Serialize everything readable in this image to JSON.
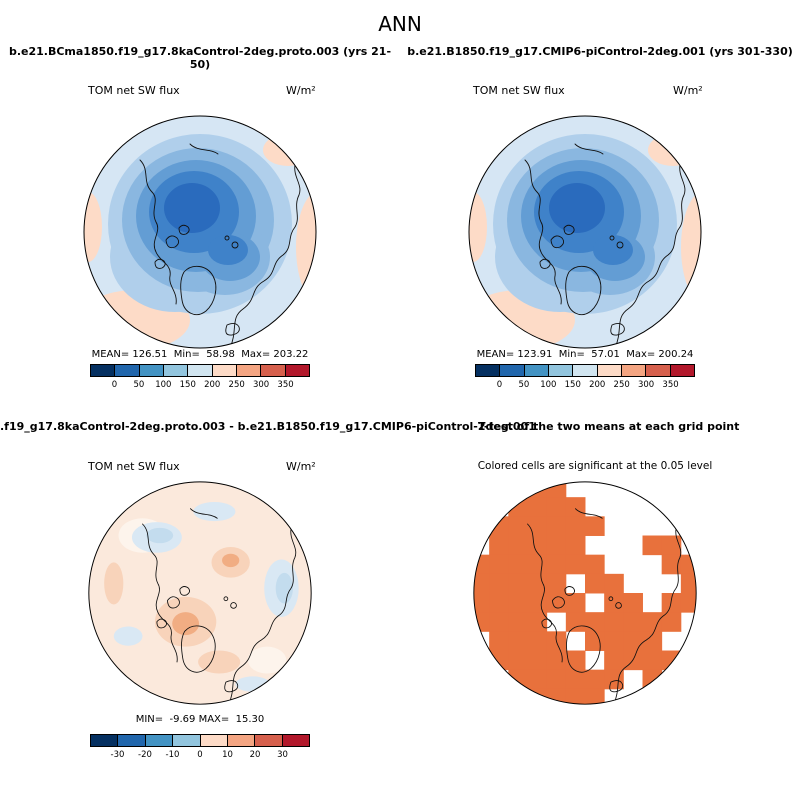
{
  "title": "ANN",
  "colorbars": {
    "flux": {
      "colors": [
        "#053061",
        "#2166ac",
        "#4393c3",
        "#92c5de",
        "#d1e5f0",
        "#fddbc7",
        "#f4a582",
        "#d6604d",
        "#b2182b"
      ],
      "ticks": [
        "0",
        "50",
        "100",
        "150",
        "200",
        "250",
        "300",
        "350"
      ]
    },
    "diff": {
      "colors": [
        "#053061",
        "#2166ac",
        "#4393c3",
        "#92c5de",
        "#fddbc7",
        "#f4a582",
        "#d6604d",
        "#b2182b"
      ],
      "ticks": [
        "-30",
        "-20",
        "-10",
        "0",
        "10",
        "20",
        "30"
      ]
    }
  },
  "panels": {
    "top_left": {
      "title": "b.e21.BCma1850.f19_g17.8kaControl-2deg.proto.003 (yrs 21-50)",
      "var_label": "TOM net SW flux",
      "units": "W/m²",
      "stats": "MEAN= 126.51  Min=  58.98  Max= 203.22"
    },
    "top_right": {
      "title": "b.e21.B1850.f19_g17.CMIP6-piControl-2deg.001 (yrs 301-330)",
      "var_label": "TOM net SW flux",
      "units": "W/m²",
      "stats": "MEAN= 123.91  Min=  57.01  Max= 200.24"
    },
    "bottom_left": {
      "title": ".f19_g17.8kaControl-2deg.proto.003 - b.e21.B1850.f19_g17.CMIP6-piControl-2deg.001",
      "var_label": "TOM net SW flux",
      "units": "W/m²",
      "stats": "MIN=  -9.69 MAX=  15.30"
    },
    "bottom_right": {
      "title": "T-test of the two means at each grid point",
      "subtitle": "Colored cells are significant at the 0.05 level"
    }
  },
  "chart_data": [
    {
      "type": "heatmap",
      "subtype": "polar-contour-map",
      "region": "Arctic (north polar stereographic)",
      "season": "ANN",
      "title": "b.e21.BCma1850.f19_g17.8kaControl-2deg.proto.003 (yrs 21-50)",
      "variable": "TOM net SW flux",
      "units": "W/m²",
      "mean": 126.51,
      "min": 58.98,
      "max": 203.22,
      "contour_levels": [
        0,
        50,
        100,
        150,
        200,
        250,
        300,
        350
      ],
      "palette": [
        "#053061",
        "#2166ac",
        "#4393c3",
        "#92c5de",
        "#d1e5f0",
        "#fddbc7",
        "#f4a582",
        "#d6604d",
        "#b2182b"
      ]
    },
    {
      "type": "heatmap",
      "subtype": "polar-contour-map",
      "region": "Arctic (north polar stereographic)",
      "season": "ANN",
      "title": "b.e21.B1850.f19_g17.CMIP6-piControl-2deg.001 (yrs 301-330)",
      "variable": "TOM net SW flux",
      "units": "W/m²",
      "mean": 123.91,
      "min": 57.01,
      "max": 200.24,
      "contour_levels": [
        0,
        50,
        100,
        150,
        200,
        250,
        300,
        350
      ],
      "palette": [
        "#053061",
        "#2166ac",
        "#4393c3",
        "#92c5de",
        "#d1e5f0",
        "#fddbc7",
        "#f4a582",
        "#d6604d",
        "#b2182b"
      ]
    },
    {
      "type": "heatmap",
      "subtype": "polar-contour-map-difference",
      "region": "Arctic (north polar stereographic)",
      "season": "ANN",
      "title": ".f19_g17.8kaControl-2deg.proto.003 - b.e21.B1850.f19_g17.CMIP6-piControl-2deg.001",
      "variable": "TOM net SW flux",
      "units": "W/m²",
      "min": -9.69,
      "max": 15.3,
      "contour_levels": [
        -30,
        -20,
        -10,
        0,
        10,
        20,
        30
      ],
      "palette": [
        "#053061",
        "#2166ac",
        "#4393c3",
        "#92c5de",
        "#fddbc7",
        "#f4a582",
        "#d6604d",
        "#b2182b"
      ]
    },
    {
      "type": "heatmap",
      "subtype": "significance-mask",
      "region": "Arctic (north polar stereographic)",
      "title": "T-test of the two means at each grid point",
      "note": "Colored cells are significant at the 0.05 level",
      "significance_level": 0.05,
      "significant_color": "#e8713c",
      "grid": [
        "000110000000",
        "001111000000",
        "011111100000",
        "011111000110",
        "111111100011",
        "111110110001",
        "111111011011",
        "111101111110",
        "011110111100",
        "011111011110",
        "001111110100",
        "000111100000"
      ]
    }
  ]
}
